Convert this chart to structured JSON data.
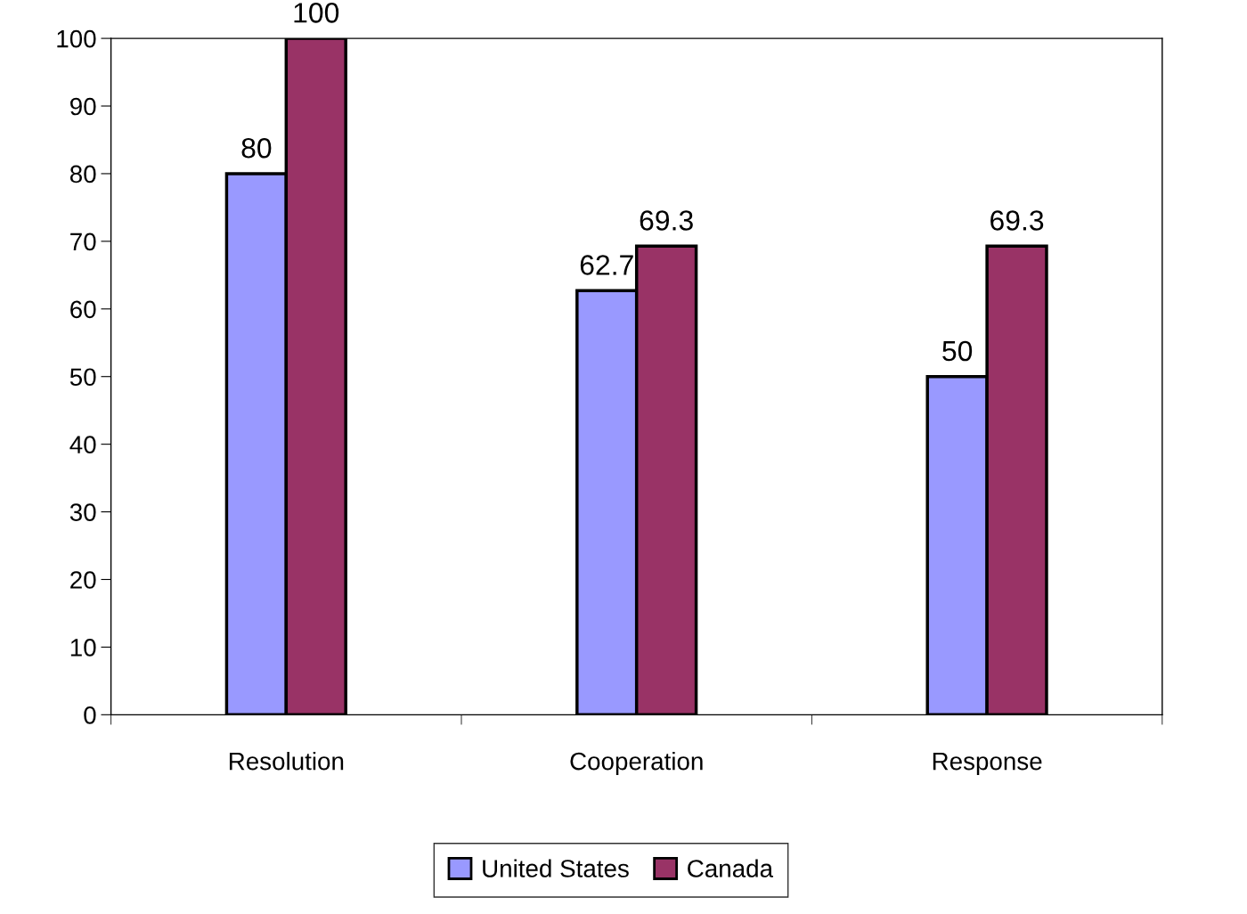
{
  "chart_data": {
    "type": "bar",
    "categories": [
      "Resolution",
      "Cooperation",
      "Response"
    ],
    "series": [
      {
        "name": "United States",
        "color": "#9999ff",
        "values": [
          80,
          62.7,
          50
        ]
      },
      {
        "name": "Canada",
        "color": "#993366",
        "values": [
          100,
          69.3,
          69.3
        ]
      }
    ],
    "ylim": [
      0,
      100
    ],
    "yticks": [
      0,
      10,
      20,
      30,
      40,
      50,
      60,
      70,
      80,
      90,
      100
    ],
    "data_labels": true,
    "grid": false,
    "legend": "bottom"
  }
}
